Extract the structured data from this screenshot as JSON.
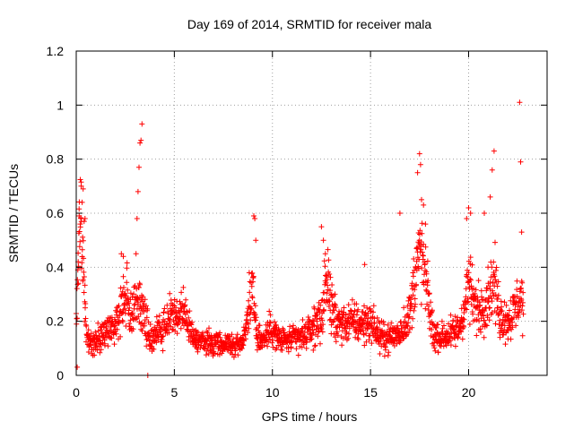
{
  "chart_data": {
    "type": "scatter",
    "title": "Day 169 of 2014, SRMTID for receiver mala",
    "xlabel": "GPS time / hours",
    "ylabel": "SRMTID / TECUs",
    "xlim": [
      0,
      24
    ],
    "ylim": [
      0,
      1.2
    ],
    "x_ticks": [
      0,
      5,
      10,
      15,
      20
    ],
    "x_tick_labels": [
      "0",
      "5",
      "10",
      "15",
      "20"
    ],
    "y_ticks": [
      0,
      0.2,
      0.4,
      0.6,
      0.8,
      1.0,
      1.2
    ],
    "y_tick_labels": [
      "0",
      "0.2",
      "0.4",
      "0.6",
      "0.8",
      "1",
      "1.2"
    ],
    "grid": true,
    "marker": "+",
    "series_color": "#ff0000",
    "series": [
      {
        "name": "SRMTID",
        "profile": [
          [
            0.0,
            0.22
          ],
          [
            0.1,
            0.45
          ],
          [
            0.2,
            0.55
          ],
          [
            0.3,
            0.5
          ],
          [
            0.4,
            0.3
          ],
          [
            0.5,
            0.15
          ],
          [
            0.8,
            0.12
          ],
          [
            1.0,
            0.13
          ],
          [
            1.3,
            0.15
          ],
          [
            1.6,
            0.17
          ],
          [
            1.9,
            0.18
          ],
          [
            2.2,
            0.22
          ],
          [
            2.4,
            0.28
          ],
          [
            2.6,
            0.3
          ],
          [
            2.8,
            0.22
          ],
          [
            3.0,
            0.25
          ],
          [
            3.2,
            0.27
          ],
          [
            3.5,
            0.2
          ],
          [
            3.8,
            0.14
          ],
          [
            4.0,
            0.15
          ],
          [
            4.3,
            0.17
          ],
          [
            4.6,
            0.2
          ],
          [
            4.9,
            0.22
          ],
          [
            5.2,
            0.21
          ],
          [
            5.5,
            0.25
          ],
          [
            5.8,
            0.17
          ],
          [
            6.0,
            0.13
          ],
          [
            6.5,
            0.12
          ],
          [
            7.0,
            0.12
          ],
          [
            7.5,
            0.12
          ],
          [
            8.0,
            0.11
          ],
          [
            8.5,
            0.12
          ],
          [
            8.8,
            0.25
          ],
          [
            9.0,
            0.35
          ],
          [
            9.2,
            0.15
          ],
          [
            9.5,
            0.13
          ],
          [
            10.0,
            0.18
          ],
          [
            10.3,
            0.13
          ],
          [
            10.8,
            0.13
          ],
          [
            11.5,
            0.14
          ],
          [
            12.0,
            0.17
          ],
          [
            12.5,
            0.22
          ],
          [
            12.8,
            0.35
          ],
          [
            13.2,
            0.2
          ],
          [
            13.6,
            0.19
          ],
          [
            14.0,
            0.2
          ],
          [
            14.5,
            0.19
          ],
          [
            15.0,
            0.2
          ],
          [
            15.5,
            0.14
          ],
          [
            16.0,
            0.14
          ],
          [
            16.5,
            0.16
          ],
          [
            17.0,
            0.22
          ],
          [
            17.3,
            0.4
          ],
          [
            17.6,
            0.45
          ],
          [
            17.9,
            0.3
          ],
          [
            18.2,
            0.15
          ],
          [
            18.6,
            0.14
          ],
          [
            19.0,
            0.15
          ],
          [
            19.5,
            0.17
          ],
          [
            19.8,
            0.25
          ],
          [
            20.0,
            0.35
          ],
          [
            20.3,
            0.25
          ],
          [
            20.7,
            0.25
          ],
          [
            21.0,
            0.3
          ],
          [
            21.3,
            0.35
          ],
          [
            21.6,
            0.22
          ],
          [
            22.0,
            0.2
          ],
          [
            22.4,
            0.25
          ],
          [
            22.7,
            0.3
          ],
          [
            22.8,
            0.22
          ]
        ],
        "spikes": [
          [
            0.1,
            0.42
          ],
          [
            0.15,
            0.59
          ],
          [
            0.2,
            0.56
          ],
          [
            0.25,
            0.7
          ],
          [
            0.3,
            0.64
          ],
          [
            0.35,
            0.69
          ],
          [
            0.4,
            0.57
          ],
          [
            0.45,
            0.58
          ],
          [
            2.3,
            0.45
          ],
          [
            2.4,
            0.44
          ],
          [
            3.05,
            0.45
          ],
          [
            3.1,
            0.58
          ],
          [
            3.15,
            0.68
          ],
          [
            3.2,
            0.77
          ],
          [
            3.25,
            0.86
          ],
          [
            3.3,
            0.87
          ],
          [
            3.35,
            0.93
          ],
          [
            9.05,
            0.59
          ],
          [
            9.1,
            0.58
          ],
          [
            9.15,
            0.5
          ],
          [
            12.5,
            0.55
          ],
          [
            12.6,
            0.5
          ],
          [
            12.7,
            0.45
          ],
          [
            14.7,
            0.41
          ],
          [
            16.5,
            0.6
          ],
          [
            17.4,
            0.75
          ],
          [
            17.5,
            0.82
          ],
          [
            17.55,
            0.78
          ],
          [
            17.6,
            0.65
          ],
          [
            17.7,
            0.63
          ],
          [
            17.8,
            0.56
          ],
          [
            19.9,
            0.58
          ],
          [
            20.0,
            0.62
          ],
          [
            20.1,
            0.6
          ],
          [
            20.8,
            0.6
          ],
          [
            21.1,
            0.66
          ],
          [
            21.2,
            0.76
          ],
          [
            21.3,
            0.83
          ],
          [
            22.6,
            1.01
          ],
          [
            22.65,
            0.79
          ],
          [
            22.7,
            0.53
          ],
          [
            3.65,
            0.0
          ],
          [
            0.05,
            0.03
          ]
        ]
      }
    ]
  }
}
